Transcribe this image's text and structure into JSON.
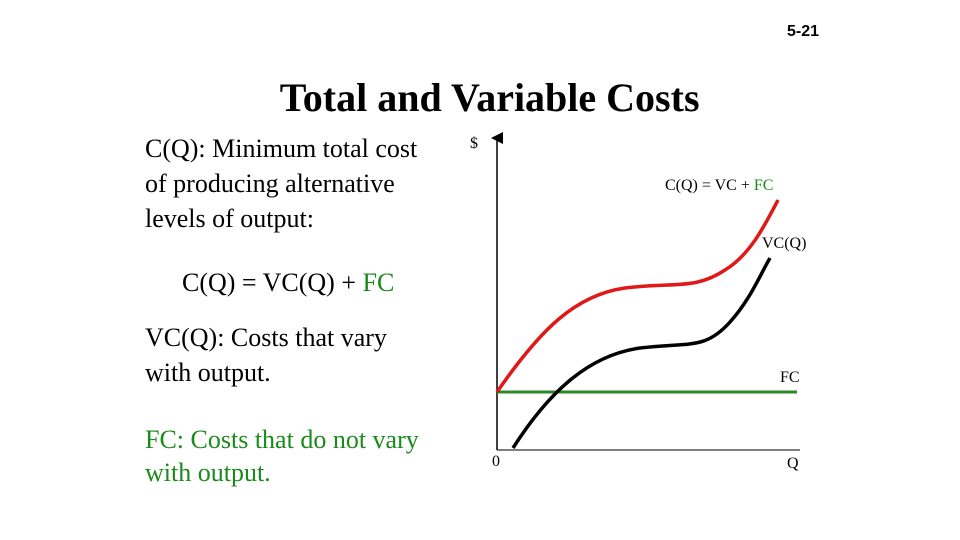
{
  "slide_number": "5-21",
  "title": "Total and Variable Costs",
  "definitions": {
    "total_cost": [
      "C(Q): Minimum total cost",
      "of producing alternative",
      "levels of output:"
    ],
    "equation": [
      "C(Q) = VC(Q) + ",
      "FC"
    ],
    "variable_cost": [
      "VC(Q): Costs that vary",
      "with output."
    ],
    "fixed_cost": [
      "FC: Costs that do not vary",
      "with output."
    ]
  },
  "diagram": {
    "y_axis_label": "$",
    "origin_label": "0",
    "x_axis_label": "Q",
    "total_cost_label": [
      "C(Q) = VC + ",
      "FC"
    ],
    "variable_cost_label": "VC(Q)",
    "fixed_cost_label": "FC"
  }
}
